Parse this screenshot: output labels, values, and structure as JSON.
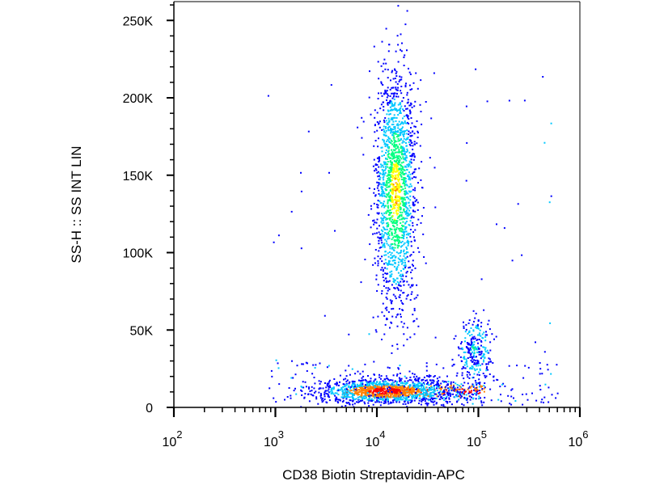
{
  "chart_data": {
    "type": "scatter",
    "xlabel": "CD38 Biotin Streptavidin-APC",
    "ylabel": "SS-H :: SS INT LIN",
    "x_scale": "log",
    "xlim": [
      100,
      1000000
    ],
    "ylim": [
      0,
      262144
    ],
    "x_ticks": [
      {
        "value": 100,
        "base": "10",
        "exp": "2"
      },
      {
        "value": 1000,
        "base": "10",
        "exp": "3"
      },
      {
        "value": 10000,
        "base": "10",
        "exp": "4"
      },
      {
        "value": 100000,
        "base": "10",
        "exp": "5"
      },
      {
        "value": 1000000,
        "base": "10",
        "exp": "6"
      }
    ],
    "y_ticks": [
      {
        "value": 0,
        "label": "0"
      },
      {
        "value": 50000,
        "label": "50K"
      },
      {
        "value": 100000,
        "label": "100K"
      },
      {
        "value": 150000,
        "label": "150K"
      },
      {
        "value": 200000,
        "label": "200K"
      },
      {
        "value": 250000,
        "label": "250K"
      }
    ],
    "grid": false,
    "legend": "none",
    "color_map": [
      "#0000ff",
      "#00c8ff",
      "#00ff80",
      "#ffff00",
      "#ff8000",
      "#ff0000"
    ],
    "populations": [
      {
        "x_center": 15000,
        "y_center": 140000,
        "log_spread": 0.1,
        "y_spread": 38000,
        "peak": "#ffff00"
      },
      {
        "x_center": 12000,
        "y_center": 11000,
        "log_spread": 0.35,
        "y_spread": 4000,
        "peak": "#ff0000"
      },
      {
        "x_center": 90000,
        "y_center": 38000,
        "log_spread": 0.08,
        "y_spread": 10000,
        "peak": "#00c8ff"
      }
    ]
  }
}
